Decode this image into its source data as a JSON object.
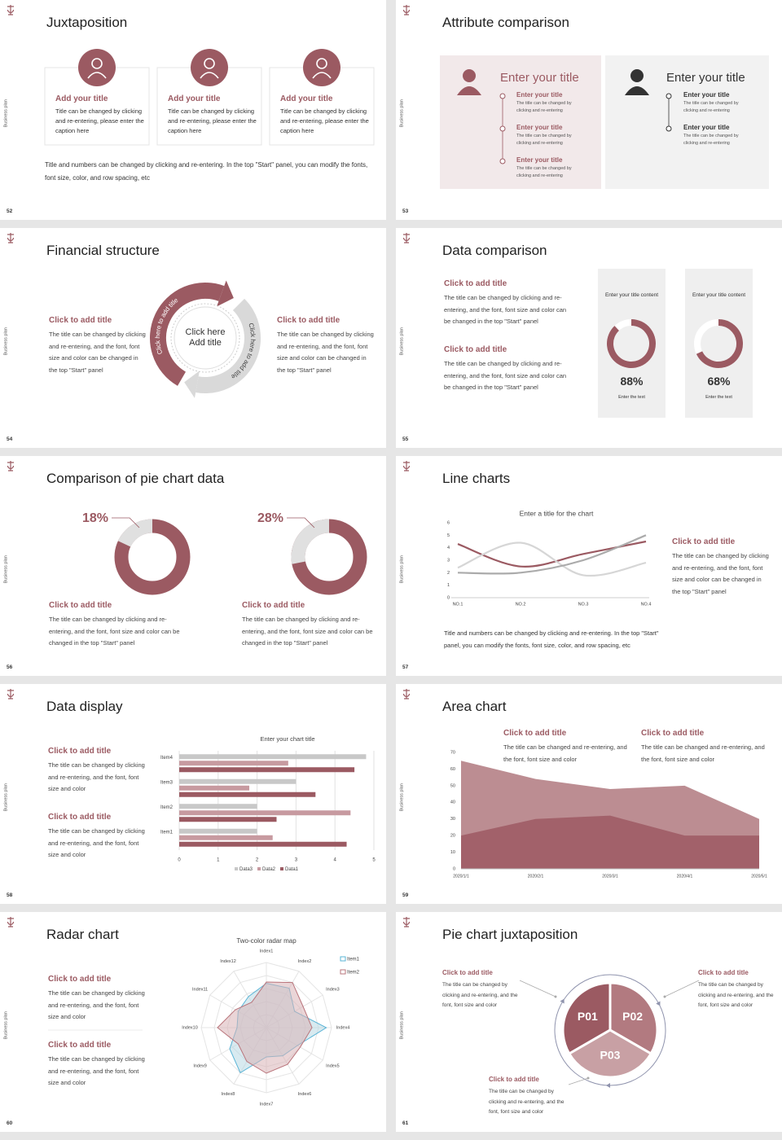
{
  "slides": [
    {
      "number": "52",
      "side_label": "Business plan",
      "title": "Juxtaposition",
      "cards": [
        {
          "title": "Add your title",
          "text": "Title can be changed by clicking and re-entering, please enter the caption here"
        },
        {
          "title": "Add your title",
          "text": "Title can be changed by clicking and re-entering, please enter the caption here"
        },
        {
          "title": "Add your title",
          "text": "Title can be changed by clicking and re-entering, please enter the caption here"
        }
      ],
      "caption": "Title and numbers can be changed by clicking and re-entering. In the top \"Start\" panel, you can modify the fonts, font size, color, and row spacing, etc"
    },
    {
      "number": "53",
      "side_label": "Business plan",
      "title": "Attribute comparison",
      "panels": [
        {
          "title": "Enter your title",
          "items": [
            {
              "title": "Enter your title",
              "text": "The title can be changed by clicking and re-entering"
            },
            {
              "title": "Enter your title",
              "text": "The title can be changed by clicking and re-entering"
            },
            {
              "title": "Enter your title",
              "text": "The title can be changed by clicking and re-entering"
            }
          ]
        },
        {
          "title": "Enter your title",
          "items": [
            {
              "title": "Enter your title",
              "text": "The title can be changed by clicking and re-entering"
            },
            {
              "title": "Enter your title",
              "text": "The title can be changed by clicking and re-entering"
            }
          ]
        }
      ]
    },
    {
      "number": "54",
      "side_label": "Business plan",
      "title": "Financial structure",
      "left": {
        "title": "Click to add title",
        "text": "The title can be changed by clicking and re-entering, and the font, font size and color can be changed in the top \"Start\" panel"
      },
      "right": {
        "title": "Click to add title",
        "text": "The title can be changed by clicking and re-entering, and the font, font size and color can be changed in the top \"Start\" panel"
      },
      "arc_labels": [
        "Click here to add title",
        "Click here to add title"
      ],
      "center": "Click here Add title"
    },
    {
      "number": "55",
      "side_label": "Business plan",
      "title": "Data comparison",
      "blocks": [
        {
          "title": "Click to add title",
          "text": "The title can be changed by clicking and re-entering, and the font, font size and color can be changed in the top \"Start\" panel"
        },
        {
          "title": "Click to add title",
          "text": "The title can be changed by clicking and re-entering, and the font, font size and color can be changed in the top \"Start\" panel"
        }
      ],
      "cards": [
        {
          "title": "Enter your title content",
          "value": 88,
          "label": "88%",
          "caption": "Enter the text"
        },
        {
          "title": "Enter your title content",
          "value": 68,
          "label": "68%",
          "caption": "Enter the text"
        }
      ]
    },
    {
      "number": "56",
      "side_label": "Business plan",
      "title": "Comparison of pie chart data",
      "pies": [
        {
          "value": 18,
          "label": "18%",
          "title": "Click to add title",
          "text": "The title can be changed by clicking and re-entering, and the font, font size and color can be changed in the top \"Start\" panel"
        },
        {
          "value": 28,
          "label": "28%",
          "title": "Click to add title",
          "text": "The title can be changed by clicking and re-entering, and the font, font size and color can be changed in the top \"Start\" panel"
        }
      ]
    },
    {
      "number": "57",
      "side_label": "Business plan",
      "title": "Line charts",
      "chart": {
        "type": "line",
        "title": "Enter a title for the chart",
        "categories": [
          "NO.1",
          "NO.2",
          "NO.3",
          "NO.4"
        ],
        "ylim": [
          0,
          6
        ],
        "yticks": [
          0,
          1,
          2,
          3,
          4,
          5,
          6
        ],
        "grid": false,
        "series": [
          {
            "color": "#9b5a62",
            "values": [
              4.3,
              2.5,
              3.5,
              4.5
            ]
          },
          {
            "color": "#d6d6d6",
            "values": [
              2.4,
              4.4,
              1.8,
              2.8
            ]
          },
          {
            "color": "#ababab",
            "values": [
              2,
              2,
              3,
              5
            ]
          }
        ]
      },
      "block": {
        "title": "Click to add title",
        "text": "The title can be changed by clicking and re-entering, and the font, font size and color can be changed in the top \"Start\" panel"
      },
      "caption": "Title and numbers can be changed by clicking and re-entering. In the top \"Start\" panel, you can modify the fonts, font size, color, and row spacing, etc"
    },
    {
      "number": "58",
      "side_label": "Business plan",
      "title": "Data display",
      "blocks": [
        {
          "title": "Click to add title",
          "text": "The title can be changed by clicking and re-entering, and the font, font size and color"
        },
        {
          "title": "Click to add title",
          "text": "The title can be changed by clicking and re-entering, and the font, font size and color"
        }
      ],
      "chart": {
        "type": "bar",
        "orientation": "horizontal",
        "title": "Enter your chart title",
        "categories": [
          "Item1",
          "Item2",
          "Item3",
          "Item4"
        ],
        "xlim": [
          0,
          5
        ],
        "xticks": [
          0,
          1,
          2,
          3,
          4,
          5
        ],
        "grid": true,
        "series": [
          {
            "name": "Data1",
            "color": "#9b5a62",
            "values": [
              4.3,
              2.5,
              3.5,
              4.5
            ]
          },
          {
            "name": "Data2",
            "color": "#c79aa0",
            "values": [
              2.4,
              4.4,
              1.8,
              2.8
            ]
          },
          {
            "name": "Data3",
            "color": "#c8c8c8",
            "values": [
              2,
              2,
              3,
              4.8
            ]
          }
        ]
      }
    },
    {
      "number": "59",
      "side_label": "Business plan",
      "title": "Area chart",
      "blocks": [
        {
          "title": "Click to add title",
          "text": "The title can be changed and re-entering, and the font, font size and color"
        },
        {
          "title": "Click to add title",
          "text": "The title can be changed and re-entering, and the font, font size and color"
        }
      ],
      "chart": {
        "type": "area",
        "x": [
          "2020/1/1",
          "2020/2/1",
          "2020/3/1",
          "2020/4/1",
          "2020/5/1"
        ],
        "ylim": [
          0,
          70
        ],
        "yticks": [
          0,
          10,
          20,
          30,
          40,
          50,
          60,
          70
        ],
        "grid": false,
        "series": [
          {
            "color": "#bc8d92",
            "values": [
              65,
              54,
              48,
              50,
              30
            ]
          },
          {
            "color": "#a2616a",
            "values": [
              20,
              30,
              32,
              20,
              20
            ]
          }
        ]
      }
    },
    {
      "number": "60",
      "side_label": "Business plan",
      "title": "Radar chart",
      "blocks": [
        {
          "title": "Click to add title",
          "text": "The title can be changed by clicking and re-entering, and the font, font size and color"
        },
        {
          "title": "Click to add title",
          "text": "The title can be changed by clicking and re-entering, and the font, font size and color"
        }
      ],
      "chart": {
        "type": "radar",
        "title": "Two-color radar map",
        "categories": [
          "Index1",
          "Index2",
          "Index3",
          "Index4",
          "Index5",
          "Index6",
          "Index7",
          "Index8",
          "Index9",
          "Index10",
          "Index11",
          "Index12"
        ],
        "rlim": [
          0,
          10
        ],
        "rticks": [
          2,
          4,
          6,
          8,
          10
        ],
        "series": [
          {
            "name": "Item1",
            "color": "#5ab4d6",
            "values": [
              6.8,
              7,
              5,
              9.2,
              5.5,
              5,
              4.5,
              8,
              6.5,
              4.5,
              5,
              5.5
            ]
          },
          {
            "name": "Item2",
            "color": "#b9747b",
            "values": [
              7,
              8,
              6.5,
              7,
              6,
              6.5,
              7,
              6,
              5,
              7.5,
              5.5,
              4.5
            ]
          }
        ]
      }
    },
    {
      "number": "61",
      "side_label": "Business plan",
      "title": "Pie chart juxtaposition",
      "segments": [
        "P01",
        "P02",
        "P03"
      ],
      "blocks": [
        {
          "title": "Click to add title",
          "text": "The title can be changed by clicking and re-entering, and the font, font size and color"
        },
        {
          "title": "Click to add title",
          "text": "The title can be changed by clicking and re-entering, and the font, font size and color"
        },
        {
          "title": "Click to add title",
          "text": "The title can be changed by clicking and re-entering, and the font, font size and color"
        }
      ]
    }
  ]
}
